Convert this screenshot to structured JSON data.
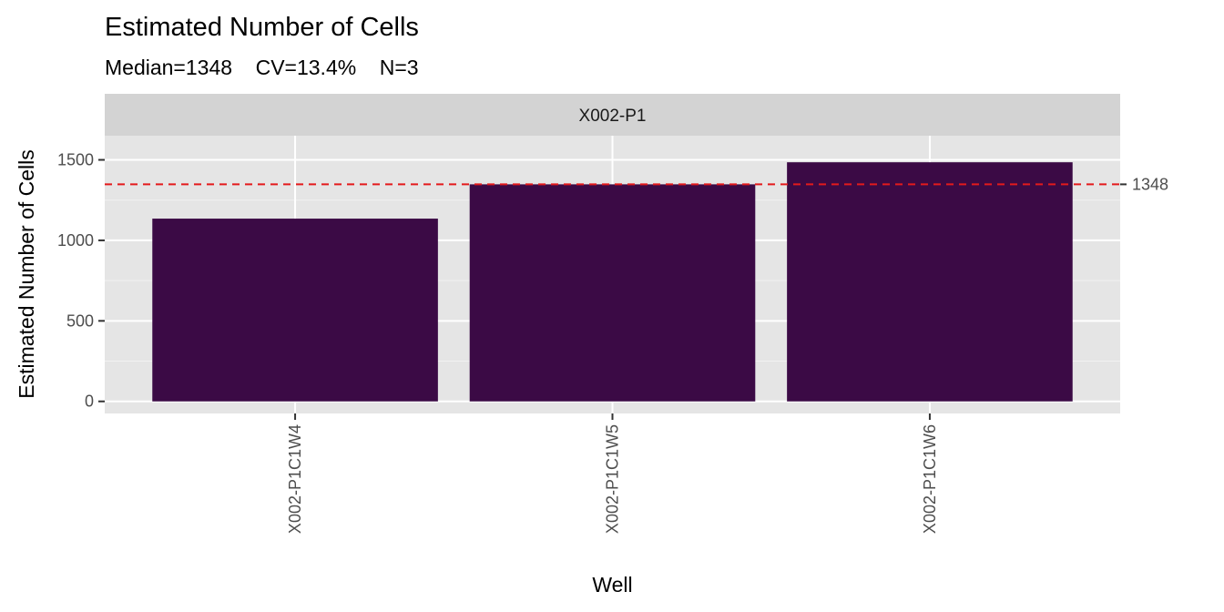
{
  "chart_data": {
    "type": "bar",
    "title": "Estimated Number of Cells",
    "subtitle": "Median=1348    CV=13.4%    N=3",
    "facet_label": "X002-P1",
    "xlabel": "Well",
    "ylabel": "Estimated Number of Cells",
    "categories": [
      "X002-P1C1W4",
      "X002-P1C1W5",
      "X002-P1C1W6"
    ],
    "values": [
      1135,
      1348,
      1485
    ],
    "ylim": [
      -75,
      1650
    ],
    "yticks": [
      0,
      500,
      1000,
      1500
    ],
    "reference_line": {
      "value": 1348,
      "label": "1348",
      "style": "dashed",
      "color": "#e41a1c"
    },
    "bar_color": "#3b0a45",
    "panel_background": "#e5e5e5",
    "strip_background": "#d3d3d3",
    "grid": true,
    "legend": "none"
  }
}
